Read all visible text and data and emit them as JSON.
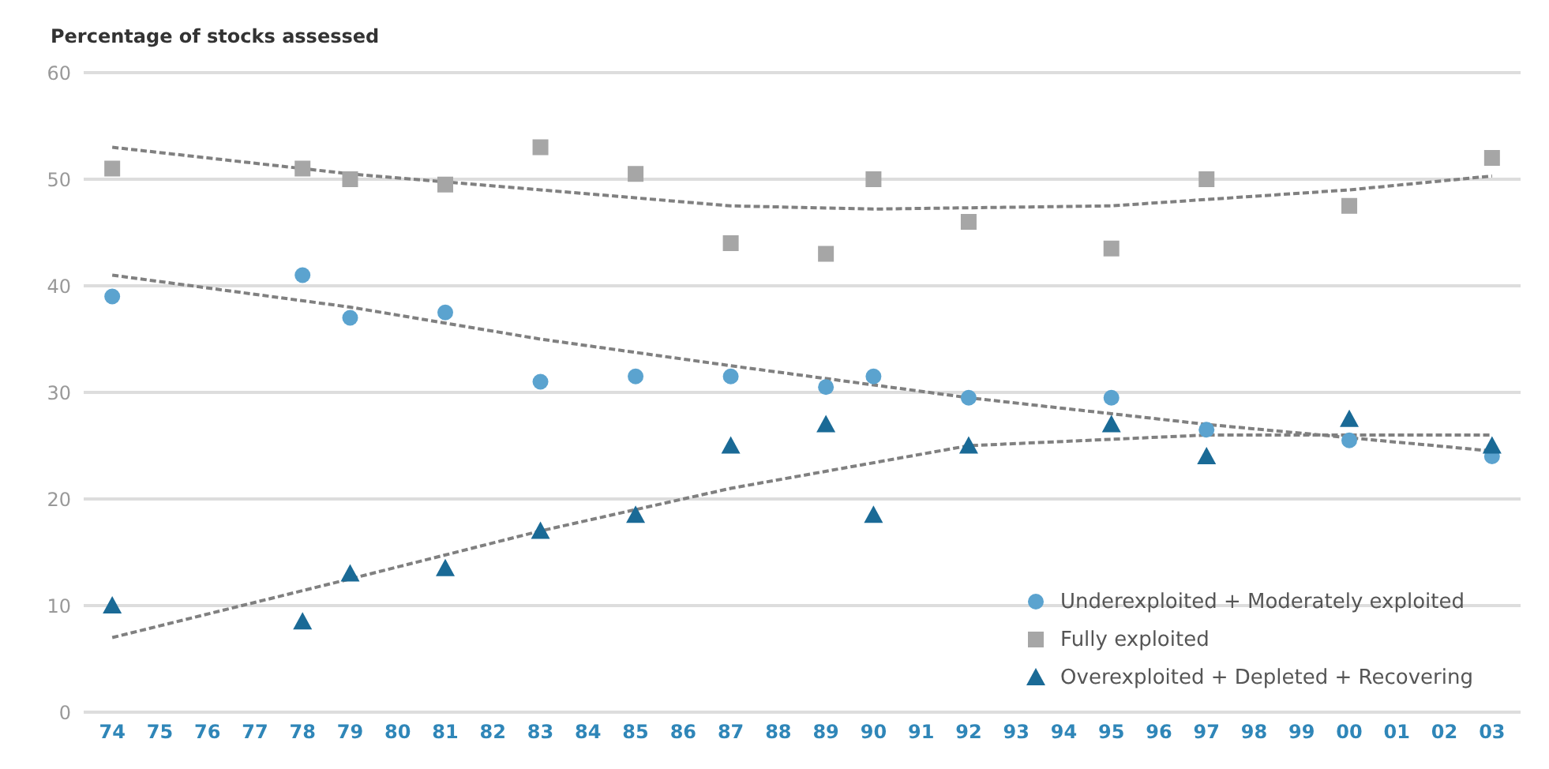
{
  "chart_data": {
    "type": "scatter",
    "ylabel": "Percentage of stocks assessed",
    "categories": [
      "74",
      "75",
      "76",
      "77",
      "78",
      "79",
      "80",
      "81",
      "82",
      "83",
      "84",
      "85",
      "86",
      "87",
      "88",
      "89",
      "90",
      "91",
      "92",
      "93",
      "94",
      "95",
      "96",
      "97",
      "98",
      "99",
      "00",
      "01",
      "02",
      "03"
    ],
    "ylim": [
      0,
      60
    ],
    "yticks": [
      0,
      10,
      20,
      30,
      40,
      50,
      60
    ],
    "grid": "y",
    "legend": "bottom right",
    "series": [
      {
        "name": "Underexploited + Moderately exploited",
        "color": "#5ba3cf",
        "marker": "circle",
        "values": [
          39,
          null,
          null,
          null,
          41,
          37,
          null,
          37.5,
          null,
          31,
          null,
          31.5,
          null,
          31.5,
          null,
          30.5,
          31.5,
          null,
          29.5,
          null,
          null,
          29.5,
          null,
          26.5,
          null,
          null,
          25.5,
          null,
          null,
          24
        ]
      },
      {
        "name": "Fully exploited",
        "color": "#a6a6a6",
        "marker": "square",
        "values": [
          51,
          null,
          null,
          null,
          51,
          50,
          null,
          49.5,
          null,
          53,
          null,
          50.5,
          null,
          44,
          null,
          43,
          50,
          null,
          46,
          null,
          null,
          43.5,
          null,
          50,
          null,
          null,
          47.5,
          null,
          null,
          52
        ]
      },
      {
        "name": "Overexploited + Depleted + Recovering",
        "color": "#1a6a96",
        "marker": "triangle",
        "values": [
          10,
          null,
          null,
          null,
          8.5,
          13,
          null,
          13.5,
          null,
          17,
          null,
          18.5,
          null,
          25,
          null,
          27,
          18.5,
          null,
          25,
          null,
          null,
          27,
          null,
          24,
          null,
          null,
          27.5,
          null,
          null,
          25
        ]
      },
      {
        "type": "line",
        "color": "#808080",
        "line_style": "dashed",
        "marker": "none",
        "values": [
          53,
          null,
          null,
          null,
          null,
          50.5,
          null,
          null,
          null,
          49,
          null,
          null,
          null,
          47.5,
          null,
          null,
          47.2,
          null,
          null,
          null,
          null,
          47.5,
          null,
          null,
          null,
          null,
          49,
          null,
          null,
          50.3
        ]
      },
      {
        "type": "line",
        "color": "#808080",
        "line_style": "dashed",
        "marker": "none",
        "values": [
          41,
          null,
          null,
          null,
          null,
          38,
          null,
          null,
          null,
          35,
          null,
          null,
          null,
          32.5,
          null,
          null,
          null,
          null,
          29.5,
          null,
          null,
          null,
          null,
          27,
          null,
          null,
          null,
          null,
          null,
          24.5
        ]
      },
      {
        "type": "line",
        "color": "#808080",
        "line_style": "dashed",
        "marker": "none",
        "values": [
          7,
          null,
          null,
          null,
          null,
          12.5,
          null,
          null,
          null,
          17,
          null,
          null,
          null,
          21,
          null,
          null,
          null,
          null,
          25,
          null,
          null,
          null,
          null,
          26,
          null,
          null,
          null,
          null,
          null,
          26
        ]
      }
    ]
  }
}
